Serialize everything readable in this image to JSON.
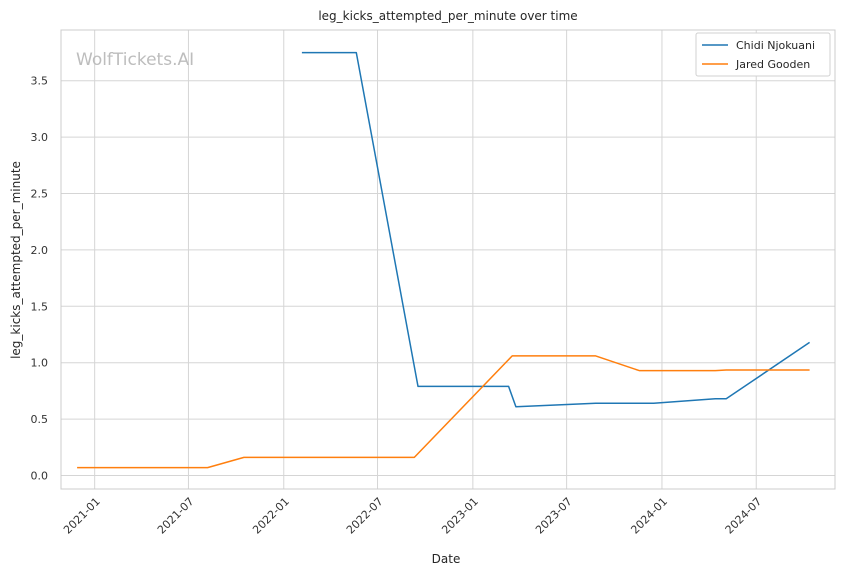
{
  "chart_data": {
    "type": "line",
    "title": "leg_kicks_attempted_per_minute over time",
    "xlabel": "Date",
    "ylabel": "leg_kicks_attempted_per_minute",
    "watermark": "WolfTickets.AI",
    "x_ticks": [
      "2021-01",
      "2021-07",
      "2022-01",
      "2022-07",
      "2023-01",
      "2023-07",
      "2024-01",
      "2024-07"
    ],
    "y_ticks": [
      "0.0",
      "0.5",
      "1.0",
      "1.5",
      "2.0",
      "2.5",
      "3.0",
      "3.5"
    ],
    "xlim": [
      "2020-10-28",
      "2024-11-30"
    ],
    "ylim": [
      -0.12,
      3.95
    ],
    "grid": true,
    "legend_position": "top-right",
    "series": [
      {
        "name": "Chidi Njokuani",
        "color": "#1f77b4",
        "points": [
          {
            "x": "2022-02-05",
            "y": 3.75
          },
          {
            "x": "2022-05-21",
            "y": 3.75
          },
          {
            "x": "2022-09-17",
            "y": 0.79
          },
          {
            "x": "2023-03-11",
            "y": 0.79
          },
          {
            "x": "2023-03-25",
            "y": 0.61
          },
          {
            "x": "2023-08-26",
            "y": 0.64
          },
          {
            "x": "2023-12-16",
            "y": 0.64
          },
          {
            "x": "2024-04-13",
            "y": 0.68
          },
          {
            "x": "2024-05-04",
            "y": 0.68
          },
          {
            "x": "2024-10-12",
            "y": 1.18
          }
        ]
      },
      {
        "name": "Jared Gooden",
        "color": "#ff7f0e",
        "points": [
          {
            "x": "2020-11-28",
            "y": 0.07
          },
          {
            "x": "2021-08-07",
            "y": 0.07
          },
          {
            "x": "2021-10-16",
            "y": 0.16
          },
          {
            "x": "2022-09-10",
            "y": 0.16
          },
          {
            "x": "2023-03-18",
            "y": 1.06
          },
          {
            "x": "2023-08-26",
            "y": 1.06
          },
          {
            "x": "2023-11-18",
            "y": 0.93
          },
          {
            "x": "2024-04-13",
            "y": 0.93
          },
          {
            "x": "2024-05-04",
            "y": 0.935
          },
          {
            "x": "2024-10-12",
            "y": 0.935
          }
        ]
      }
    ]
  }
}
